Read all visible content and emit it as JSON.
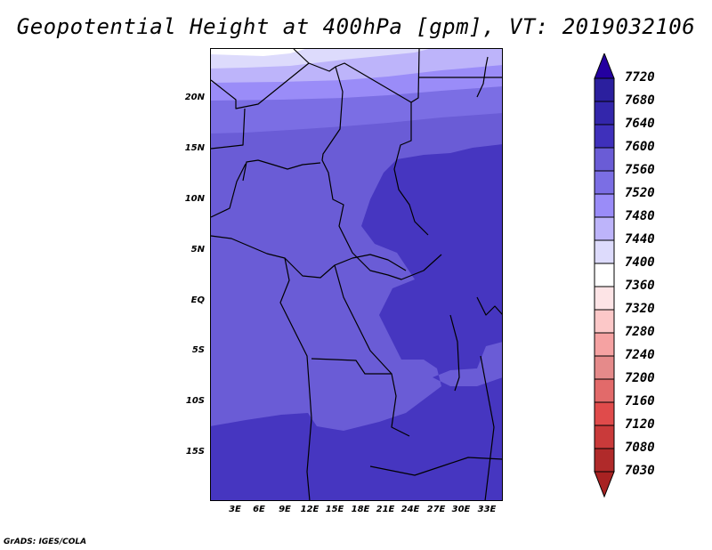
{
  "title": "Geopotential Height at 400hPa [gpm], VT: 2019032106",
  "lat_labels": [
    "20N",
    "15N",
    "10N",
    "5N",
    "EQ",
    "5S",
    "10S",
    "15S"
  ],
  "lon_labels": [
    "3E",
    "6E",
    "9E",
    "12E",
    "15E",
    "18E",
    "21E",
    "24E",
    "27E",
    "30E",
    "33E"
  ],
  "colorbar": {
    "labels": [
      "7720",
      "7680",
      "7640",
      "7600",
      "7560",
      "7520",
      "7480",
      "7440",
      "7400",
      "7360",
      "7320",
      "7280",
      "7240",
      "7200",
      "7160",
      "7120",
      "7080",
      "7030"
    ],
    "colors": [
      "#2b1f9e",
      "#3326ab",
      "#3f30bb",
      "#6a5cd6",
      "#7b6ee4",
      "#9a8cf8",
      "#bdb4fa",
      "#dddbfc",
      "#ffffff",
      "#fde4e6",
      "#fcc8c8",
      "#f5a2a2",
      "#e58a8a",
      "#e26a6a",
      "#e04b4b",
      "#c93a3a",
      "#b02a2a"
    ],
    "top_arrow_color": "#2400a0",
    "bottom_arrow_color": "#a82222"
  },
  "credit": "GrADS: IGES/COLA"
}
